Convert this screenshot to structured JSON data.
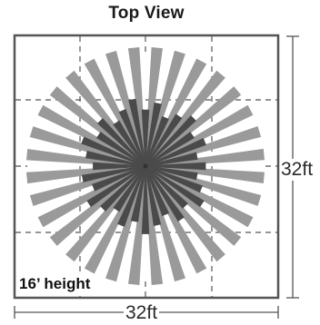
{
  "title": "Top View",
  "dimensions": {
    "width": "32ft",
    "depth": "32ft"
  },
  "height_label": "16’ height",
  "colors": {
    "ray_light": "#9a9a9a",
    "ray_dark": "#4a4a4a",
    "frame": "#555555",
    "grid": "#555555"
  },
  "pattern": {
    "rays": 32,
    "light_length": 1.0,
    "dark_length": 0.52
  }
}
